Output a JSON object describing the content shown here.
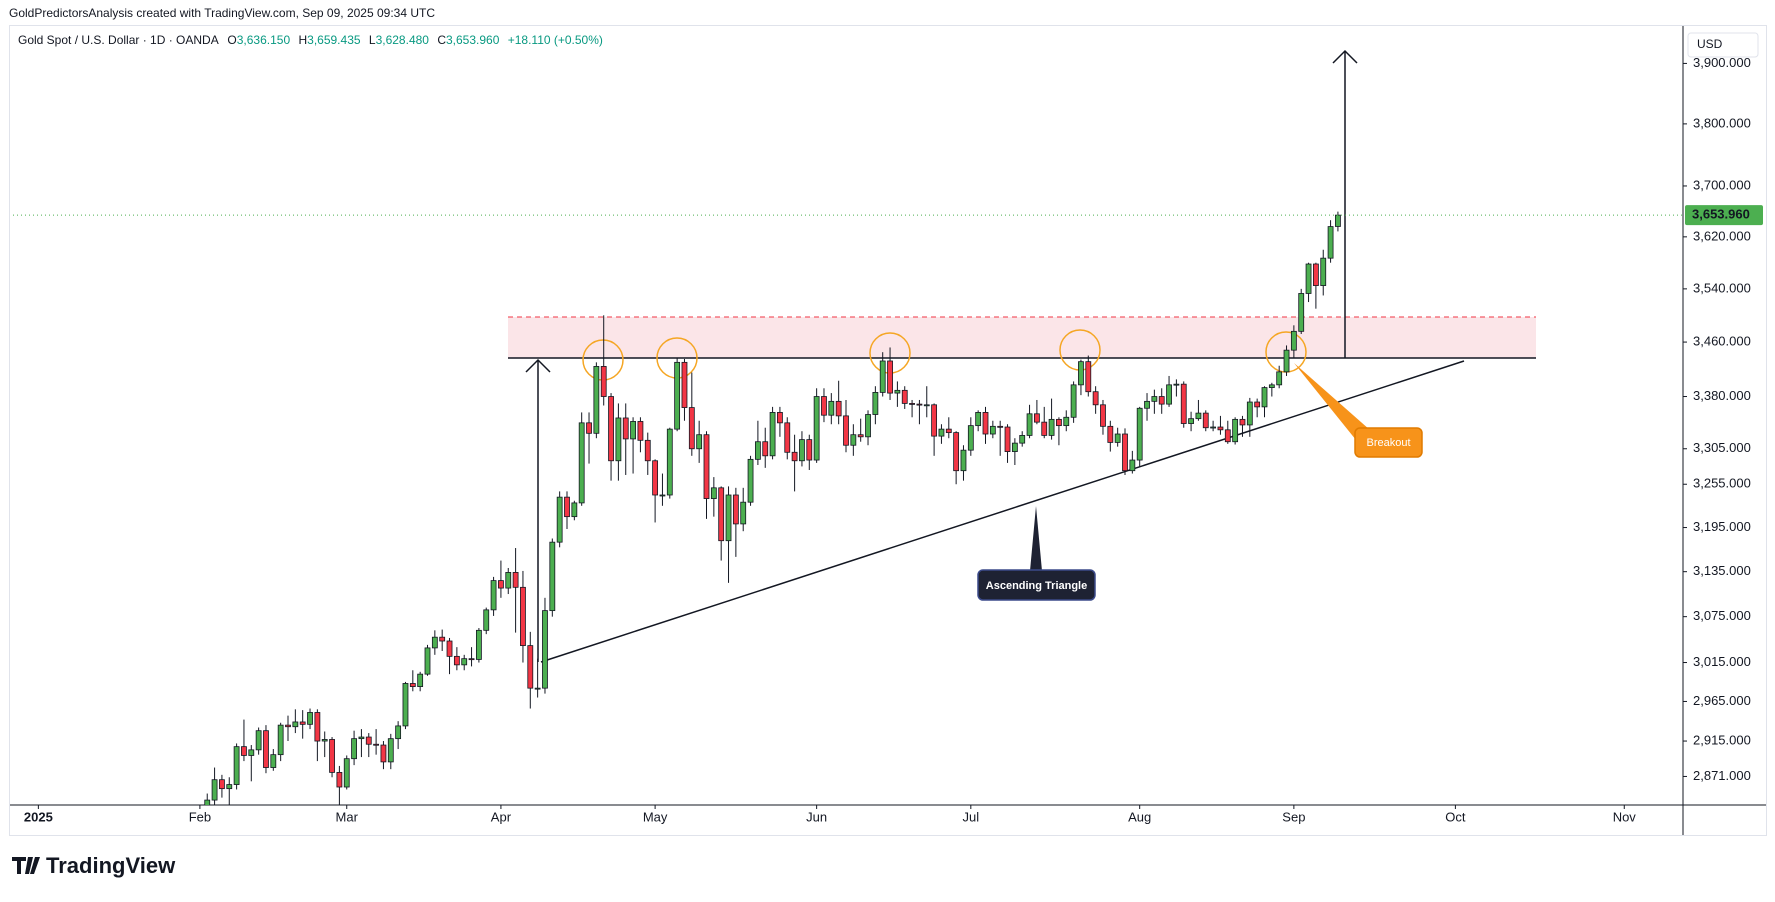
{
  "header": {
    "attribution": "GoldPredictorsAnalysis created with TradingView.com, Sep 09, 2025 09:34 UTC",
    "symbol": "Gold Spot / U.S. Dollar · 1D · OANDA",
    "ohlc": [
      {
        "prefix": "O",
        "value": "3,636.150"
      },
      {
        "prefix": "H",
        "value": "3,659.435"
      },
      {
        "prefix": "L",
        "value": "3,628.480"
      },
      {
        "prefix": "C",
        "value": "3,653.960"
      }
    ],
    "change": "+18.110 (+0.50%)"
  },
  "currency": "USD",
  "brand": "TradingView",
  "annotations": {
    "pattern": "Ascending Triangle",
    "breakout": "Breakout"
  },
  "chart_data": {
    "type": "candlestick",
    "log_scale": true,
    "grid": false,
    "up_color": "#4caf50",
    "down_color": "#f23645",
    "xlim": [
      -26,
      202
    ],
    "ylim": [
      2836,
      3953
    ],
    "xticks": [
      {
        "value": -22,
        "label": "2025"
      },
      {
        "value": 0,
        "label": "Feb"
      },
      {
        "value": 20,
        "label": "Mar"
      },
      {
        "value": 41,
        "label": "Apr"
      },
      {
        "value": 62,
        "label": "May"
      },
      {
        "value": 84,
        "label": "Jun"
      },
      {
        "value": 105,
        "label": "Jul"
      },
      {
        "value": 128,
        "label": "Aug"
      },
      {
        "value": 149,
        "label": "Sep"
      },
      {
        "value": 171,
        "label": "Oct"
      },
      {
        "value": 194,
        "label": "Nov"
      }
    ],
    "yticks": [
      {
        "value": 2871,
        "label": "2,871.000"
      },
      {
        "value": 2915,
        "label": "2,915.000"
      },
      {
        "value": 2965,
        "label": "2,965.000"
      },
      {
        "value": 3015,
        "label": "3,015.000"
      },
      {
        "value": 3075,
        "label": "3,075.000"
      },
      {
        "value": 3135,
        "label": "3,135.000"
      },
      {
        "value": 3195,
        "label": "3,195.000"
      },
      {
        "value": 3255,
        "label": "3,255.000"
      },
      {
        "value": 3305,
        "label": "3,305.000"
      },
      {
        "value": 3380,
        "label": "3,380.000"
      },
      {
        "value": 3460,
        "label": "3,460.000"
      },
      {
        "value": 3540,
        "label": "3,540.000"
      },
      {
        "value": 3620,
        "label": "3,620.000"
      },
      {
        "value": 3700,
        "label": "3,700.000"
      },
      {
        "value": 3800,
        "label": "3,800.000"
      },
      {
        "value": 3900,
        "label": "3,900.000"
      }
    ],
    "last_price": {
      "value": 3653.96,
      "label": "3,653.960"
    },
    "candles": [
      [
        2800,
        2830,
        2790,
        2815
      ],
      [
        2815,
        2850,
        2805,
        2842
      ],
      [
        2842,
        2882,
        2835,
        2867
      ],
      [
        2867,
        2873,
        2845,
        2856
      ],
      [
        2856,
        2870,
        2835,
        2861
      ],
      [
        2861,
        2912,
        2855,
        2908
      ],
      [
        2908,
        2942,
        2890,
        2897
      ],
      [
        2897,
        2910,
        2865,
        2904
      ],
      [
        2904,
        2932,
        2898,
        2928
      ],
      [
        2928,
        2935,
        2875,
        2882
      ],
      [
        2882,
        2905,
        2878,
        2898
      ],
      [
        2898,
        2938,
        2890,
        2935
      ],
      [
        2935,
        2947,
        2915,
        2933
      ],
      [
        2933,
        2955,
        2925,
        2939
      ],
      [
        2939,
        2954,
        2918,
        2936
      ],
      [
        2936,
        2956,
        2930,
        2951
      ],
      [
        2951,
        2955,
        2890,
        2915
      ],
      [
        2915,
        2927,
        2895,
        2917
      ],
      [
        2917,
        2920,
        2870,
        2876
      ],
      [
        2876,
        2884,
        2832,
        2858
      ],
      [
        2858,
        2897,
        2855,
        2893
      ],
      [
        2893,
        2928,
        2885,
        2918
      ],
      [
        2918,
        2930,
        2895,
        2920
      ],
      [
        2920,
        2925,
        2895,
        2911
      ],
      [
        2911,
        2930,
        2898,
        2910
      ],
      [
        2910,
        2915,
        2880,
        2889
      ],
      [
        2889,
        2924,
        2880,
        2918
      ],
      [
        2918,
        2940,
        2905,
        2934
      ],
      [
        2934,
        2990,
        2930,
        2988
      ],
      [
        2988,
        3005,
        2978,
        2984
      ],
      [
        2984,
        3003,
        2978,
        3000
      ],
      [
        3000,
        3038,
        2998,
        3034
      ],
      [
        3034,
        3057,
        3025,
        3048
      ],
      [
        3048,
        3058,
        3030,
        3043
      ],
      [
        3043,
        3047,
        3000,
        3023
      ],
      [
        3023,
        3035,
        3005,
        3012
      ],
      [
        3012,
        3025,
        3005,
        3020
      ],
      [
        3020,
        3035,
        3010,
        3019
      ],
      [
        3019,
        3060,
        3015,
        3057
      ],
      [
        3057,
        3087,
        3052,
        3084
      ],
      [
        3084,
        3128,
        3076,
        3123
      ],
      [
        3123,
        3150,
        3100,
        3113
      ],
      [
        3113,
        3140,
        3105,
        3134
      ],
      [
        3134,
        3167,
        3054,
        3114
      ],
      [
        3114,
        3136,
        3015,
        3037
      ],
      [
        3037,
        3055,
        2956,
        2982
      ],
      [
        2982,
        3020,
        2970,
        2982
      ],
      [
        2982,
        3100,
        2975,
        3083
      ],
      [
        3083,
        3180,
        3075,
        3175
      ],
      [
        3175,
        3245,
        3168,
        3237
      ],
      [
        3237,
        3245,
        3193,
        3210
      ],
      [
        3210,
        3232,
        3205,
        3229
      ],
      [
        3229,
        3357,
        3225,
        3342
      ],
      [
        3342,
        3357,
        3284,
        3327
      ],
      [
        3327,
        3430,
        3320,
        3424
      ],
      [
        3424,
        3500,
        3367,
        3380
      ],
      [
        3380,
        3385,
        3260,
        3288
      ],
      [
        3288,
        3370,
        3260,
        3349
      ],
      [
        3349,
        3370,
        3268,
        3319
      ],
      [
        3319,
        3350,
        3270,
        3344
      ],
      [
        3344,
        3350,
        3300,
        3317
      ],
      [
        3317,
        3328,
        3268,
        3288
      ],
      [
        3288,
        3290,
        3202,
        3240
      ],
      [
        3240,
        3270,
        3225,
        3240
      ],
      [
        3240,
        3335,
        3235,
        3333
      ],
      [
        3333,
        3437,
        3330,
        3430
      ],
      [
        3430,
        3435,
        3345,
        3364
      ],
      [
        3364,
        3415,
        3295,
        3305
      ],
      [
        3305,
        3345,
        3285,
        3325
      ],
      [
        3325,
        3330,
        3207,
        3235
      ],
      [
        3235,
        3265,
        3210,
        3250
      ],
      [
        3250,
        3252,
        3150,
        3177
      ],
      [
        3177,
        3252,
        3120,
        3240
      ],
      [
        3240,
        3250,
        3155,
        3200
      ],
      [
        3200,
        3250,
        3190,
        3230
      ],
      [
        3230,
        3295,
        3225,
        3290
      ],
      [
        3290,
        3345,
        3282,
        3315
      ],
      [
        3315,
        3335,
        3278,
        3295
      ],
      [
        3295,
        3365,
        3290,
        3357
      ],
      [
        3357,
        3365,
        3322,
        3342
      ],
      [
        3342,
        3350,
        3290,
        3300
      ],
      [
        3300,
        3325,
        3245,
        3288
      ],
      [
        3288,
        3330,
        3280,
        3318
      ],
      [
        3318,
        3325,
        3275,
        3289
      ],
      [
        3289,
        3392,
        3285,
        3380
      ],
      [
        3380,
        3392,
        3343,
        3353
      ],
      [
        3353,
        3385,
        3340,
        3373
      ],
      [
        3373,
        3403,
        3340,
        3352
      ],
      [
        3352,
        3375,
        3300,
        3310
      ],
      [
        3310,
        3340,
        3295,
        3325
      ],
      [
        3325,
        3348,
        3315,
        3322
      ],
      [
        3322,
        3360,
        3310,
        3354
      ],
      [
        3354,
        3395,
        3340,
        3386
      ],
      [
        3386,
        3445,
        3380,
        3432
      ],
      [
        3432,
        3452,
        3375,
        3385
      ],
      [
        3385,
        3402,
        3365,
        3389
      ],
      [
        3389,
        3395,
        3362,
        3370
      ],
      [
        3370,
        3375,
        3350,
        3369
      ],
      [
        3369,
        3375,
        3340,
        3368
      ],
      [
        3368,
        3395,
        3350,
        3368
      ],
      [
        3368,
        3370,
        3295,
        3323
      ],
      [
        3323,
        3340,
        3312,
        3333
      ],
      [
        3333,
        3350,
        3320,
        3328
      ],
      [
        3328,
        3330,
        3255,
        3274
      ],
      [
        3274,
        3310,
        3260,
        3303
      ],
      [
        3303,
        3350,
        3295,
        3338
      ],
      [
        3338,
        3360,
        3330,
        3357
      ],
      [
        3357,
        3365,
        3312,
        3326
      ],
      [
        3326,
        3345,
        3320,
        3337
      ],
      [
        3337,
        3345,
        3295,
        3336
      ],
      [
        3336,
        3340,
        3285,
        3301
      ],
      [
        3301,
        3320,
        3282,
        3313
      ],
      [
        3313,
        3330,
        3308,
        3324
      ],
      [
        3324,
        3368,
        3320,
        3355
      ],
      [
        3355,
        3375,
        3340,
        3343
      ],
      [
        3343,
        3365,
        3320,
        3324
      ],
      [
        3324,
        3377,
        3318,
        3347
      ],
      [
        3347,
        3350,
        3310,
        3338
      ],
      [
        3338,
        3360,
        3330,
        3350
      ],
      [
        3350,
        3402,
        3342,
        3397
      ],
      [
        3397,
        3434,
        3382,
        3431
      ],
      [
        3431,
        3440,
        3380,
        3387
      ],
      [
        3387,
        3395,
        3355,
        3368
      ],
      [
        3368,
        3375,
        3325,
        3337
      ],
      [
        3337,
        3345,
        3301,
        3314
      ],
      [
        3314,
        3335,
        3308,
        3326
      ],
      [
        3326,
        3334,
        3268,
        3274
      ],
      [
        3274,
        3302,
        3270,
        3289
      ],
      [
        3289,
        3365,
        3280,
        3363
      ],
      [
        3363,
        3385,
        3345,
        3373
      ],
      [
        3373,
        3390,
        3355,
        3380
      ],
      [
        3380,
        3392,
        3355,
        3369
      ],
      [
        3369,
        3410,
        3365,
        3397
      ],
      [
        3397,
        3405,
        3380,
        3398
      ],
      [
        3398,
        3402,
        3335,
        3341
      ],
      [
        3341,
        3358,
        3330,
        3348
      ],
      [
        3348,
        3375,
        3345,
        3356
      ],
      [
        3356,
        3360,
        3330,
        3335
      ],
      [
        3335,
        3345,
        3330,
        3336
      ],
      [
        3336,
        3352,
        3325,
        3332
      ],
      [
        3332,
        3345,
        3312,
        3315
      ],
      [
        3315,
        3350,
        3311,
        3347
      ],
      [
        3347,
        3352,
        3322,
        3339
      ],
      [
        3339,
        3378,
        3322,
        3372
      ],
      [
        3372,
        3377,
        3350,
        3365
      ],
      [
        3365,
        3395,
        3350,
        3393
      ],
      [
        3393,
        3400,
        3380,
        3397
      ],
      [
        3397,
        3425,
        3392,
        3416
      ],
      [
        3416,
        3455,
        3410,
        3448
      ],
      [
        3448,
        3485,
        3436,
        3476
      ],
      [
        3476,
        3540,
        3472,
        3533
      ],
      [
        3533,
        3580,
        3520,
        3578
      ],
      [
        3578,
        3580,
        3510,
        3545
      ],
      [
        3545,
        3600,
        3530,
        3587
      ],
      [
        3587,
        3646,
        3580,
        3636
      ],
      [
        3636.15,
        3659.435,
        3628.48,
        3653.96
      ]
    ]
  }
}
